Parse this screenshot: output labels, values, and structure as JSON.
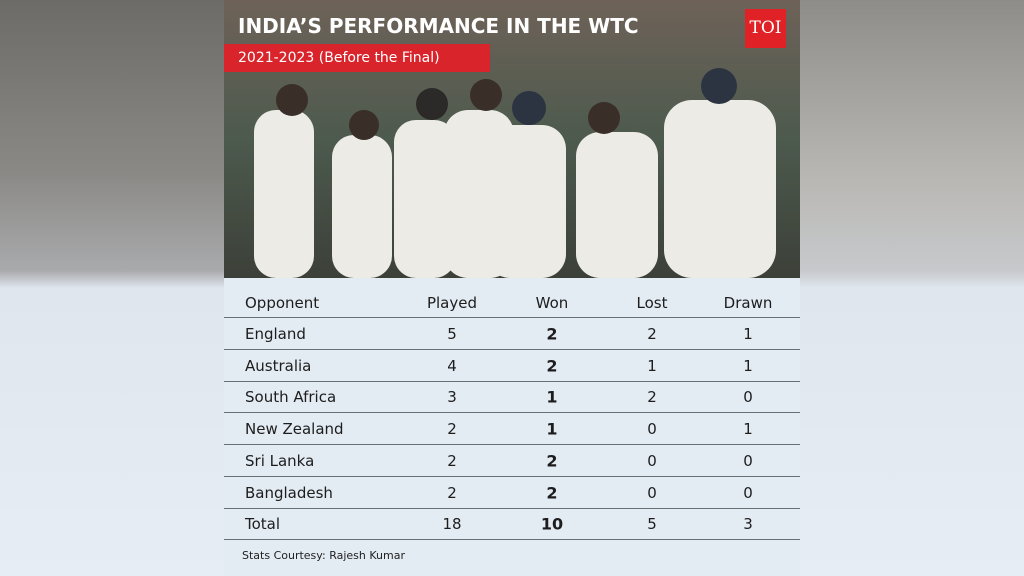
{
  "header": {
    "title": "INDIA’S PERFORMANCE IN THE WTC",
    "subtitle": "2021-2023 (Before the Final)",
    "logo": "TOI"
  },
  "table": {
    "columns": [
      "Opponent",
      "Played",
      "Won",
      "Lost",
      "Drawn"
    ],
    "rows": [
      [
        "England",
        5,
        2,
        2,
        1
      ],
      [
        "Australia",
        4,
        2,
        1,
        1
      ],
      [
        "South Africa",
        3,
        1,
        2,
        0
      ],
      [
        "New Zealand",
        2,
        1,
        0,
        1
      ],
      [
        "Sri Lanka",
        2,
        2,
        0,
        0
      ],
      [
        "Bangladesh",
        2,
        2,
        0,
        0
      ],
      [
        "Total",
        18,
        10,
        5,
        3
      ]
    ]
  },
  "footer": "Stats Courtesy: Rajesh Kumar"
}
